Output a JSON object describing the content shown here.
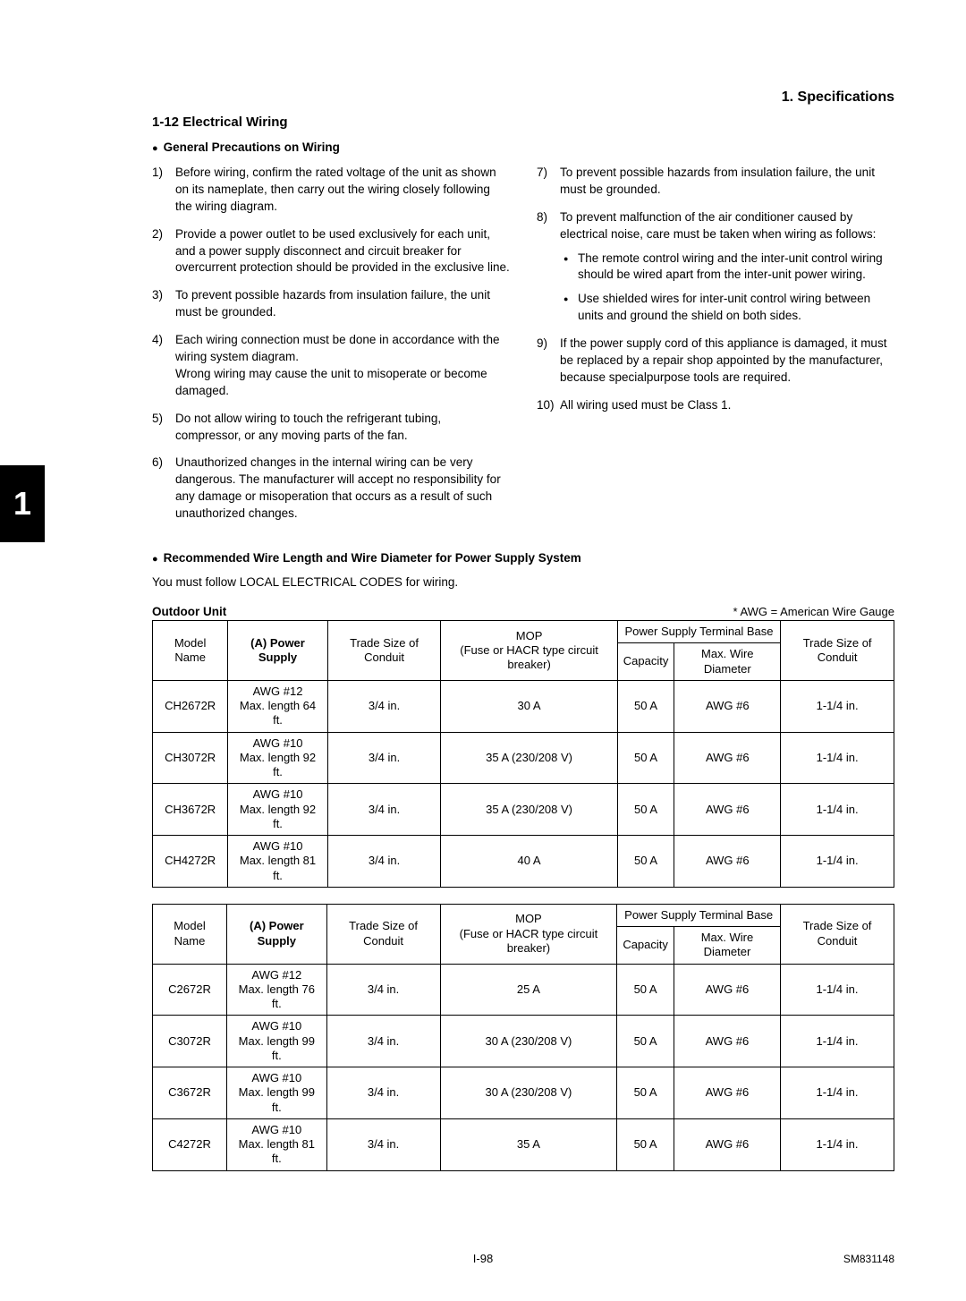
{
  "header": {
    "chapter": "1. Specifications"
  },
  "section": {
    "number_title": "1-12 Electrical Wiring"
  },
  "precautions": {
    "heading": "General Precautions on Wiring",
    "left": [
      "Before wiring, confirm the rated voltage of the unit as shown on its nameplate, then carry out the wiring closely following the wiring diagram.",
      "Provide a power outlet to be used exclusively for each unit, and a power supply disconnect and circuit breaker for overcurrent protection should be provided in the exclusive line.",
      "To prevent possible hazards from insulation failure, the unit must be grounded.",
      "Each wiring connection must be done in accordance with the wiring system diagram.\nWrong wiring may cause the unit to misoperate or become damaged.",
      "Do not allow wiring to touch the refrigerant tubing, compressor, or any moving parts of the fan.",
      "Unauthorized changes in the internal wiring can be very dangerous. The manufacturer will accept no responsibility for any damage or misoperation that occurs as a result of such unauthorized changes."
    ],
    "right": {
      "i7": "To prevent possible hazards from insulation failure, the unit must be grounded.",
      "i8": "To prevent malfunction of the air conditioner caused by electrical noise, care must be taken when wiring as follows:",
      "i8_sub": [
        "The remote control wiring and the inter-unit control wiring should be wired apart from the inter-unit power wiring.",
        "Use shielded wires for inter-unit control wiring between units and ground the shield on both sides."
      ],
      "i9": "If the power supply cord of this appliance is damaged, it must be replaced by a repair shop appointed by the manufacturer, because specialpurpose tools are required.",
      "i10": "All wiring used must be Class 1."
    }
  },
  "side_tab": "1",
  "recommended": {
    "heading": "Recommended Wire Length and Wire Diameter for Power Supply System",
    "intro": "You must follow LOCAL ELECTRICAL CODES for wiring.",
    "outdoor_label": "Outdoor Unit",
    "awg_note": "* AWG = American Wire Gauge"
  },
  "table_headers": {
    "model": "Model Name",
    "power": "(A) Power Supply",
    "conduit1": "Trade Size of Conduit",
    "mop": "MOP\n(Fuse or HACR type circuit breaker)",
    "terminal": "Power Supply Terminal Base",
    "capacity": "Capacity",
    "max_wire": "Max. Wire Diameter",
    "conduit2": "Trade Size of Conduit"
  },
  "table1": [
    {
      "model": "CH2672R",
      "ps": "AWG #12\nMax. length 64 ft.",
      "c1": "3/4 in.",
      "mop": "30 A",
      "cap": "50 A",
      "mw": "AWG #6",
      "c2": "1-1/4 in."
    },
    {
      "model": "CH3072R",
      "ps": "AWG #10\nMax. length 92 ft.",
      "c1": "3/4 in.",
      "mop": "35 A (230/208 V)",
      "cap": "50 A",
      "mw": "AWG #6",
      "c2": "1-1/4 in."
    },
    {
      "model": "CH3672R",
      "ps": "AWG #10\nMax. length 92 ft.",
      "c1": "3/4 in.",
      "mop": "35 A (230/208 V)",
      "cap": "50 A",
      "mw": "AWG #6",
      "c2": "1-1/4 in."
    },
    {
      "model": "CH4272R",
      "ps": "AWG #10\nMax. length 81 ft.",
      "c1": "3/4 in.",
      "mop": "40 A",
      "cap": "50 A",
      "mw": "AWG #6",
      "c2": "1-1/4 in."
    }
  ],
  "table2": [
    {
      "model": "C2672R",
      "ps": "AWG #12\nMax. length 76 ft.",
      "c1": "3/4 in.",
      "mop": "25 A",
      "cap": "50 A",
      "mw": "AWG #6",
      "c2": "1-1/4 in."
    },
    {
      "model": "C3072R",
      "ps": "AWG #10\nMax. length 99 ft.",
      "c1": "3/4 in.",
      "mop": "30 A (230/208 V)",
      "cap": "50 A",
      "mw": "AWG #6",
      "c2": "1-1/4 in."
    },
    {
      "model": "C3672R",
      "ps": "AWG #10\nMax. length 99 ft.",
      "c1": "3/4 in.",
      "mop": "30 A (230/208 V)",
      "cap": "50 A",
      "mw": "AWG #6",
      "c2": "1-1/4 in."
    },
    {
      "model": "C4272R",
      "ps": "AWG #10\nMax. length 81 ft.",
      "c1": "3/4 in.",
      "mop": "35 A",
      "cap": "50 A",
      "mw": "AWG #6",
      "c2": "1-1/4 in."
    }
  ],
  "footer": {
    "page": "I-98",
    "doc": "SM831148"
  }
}
